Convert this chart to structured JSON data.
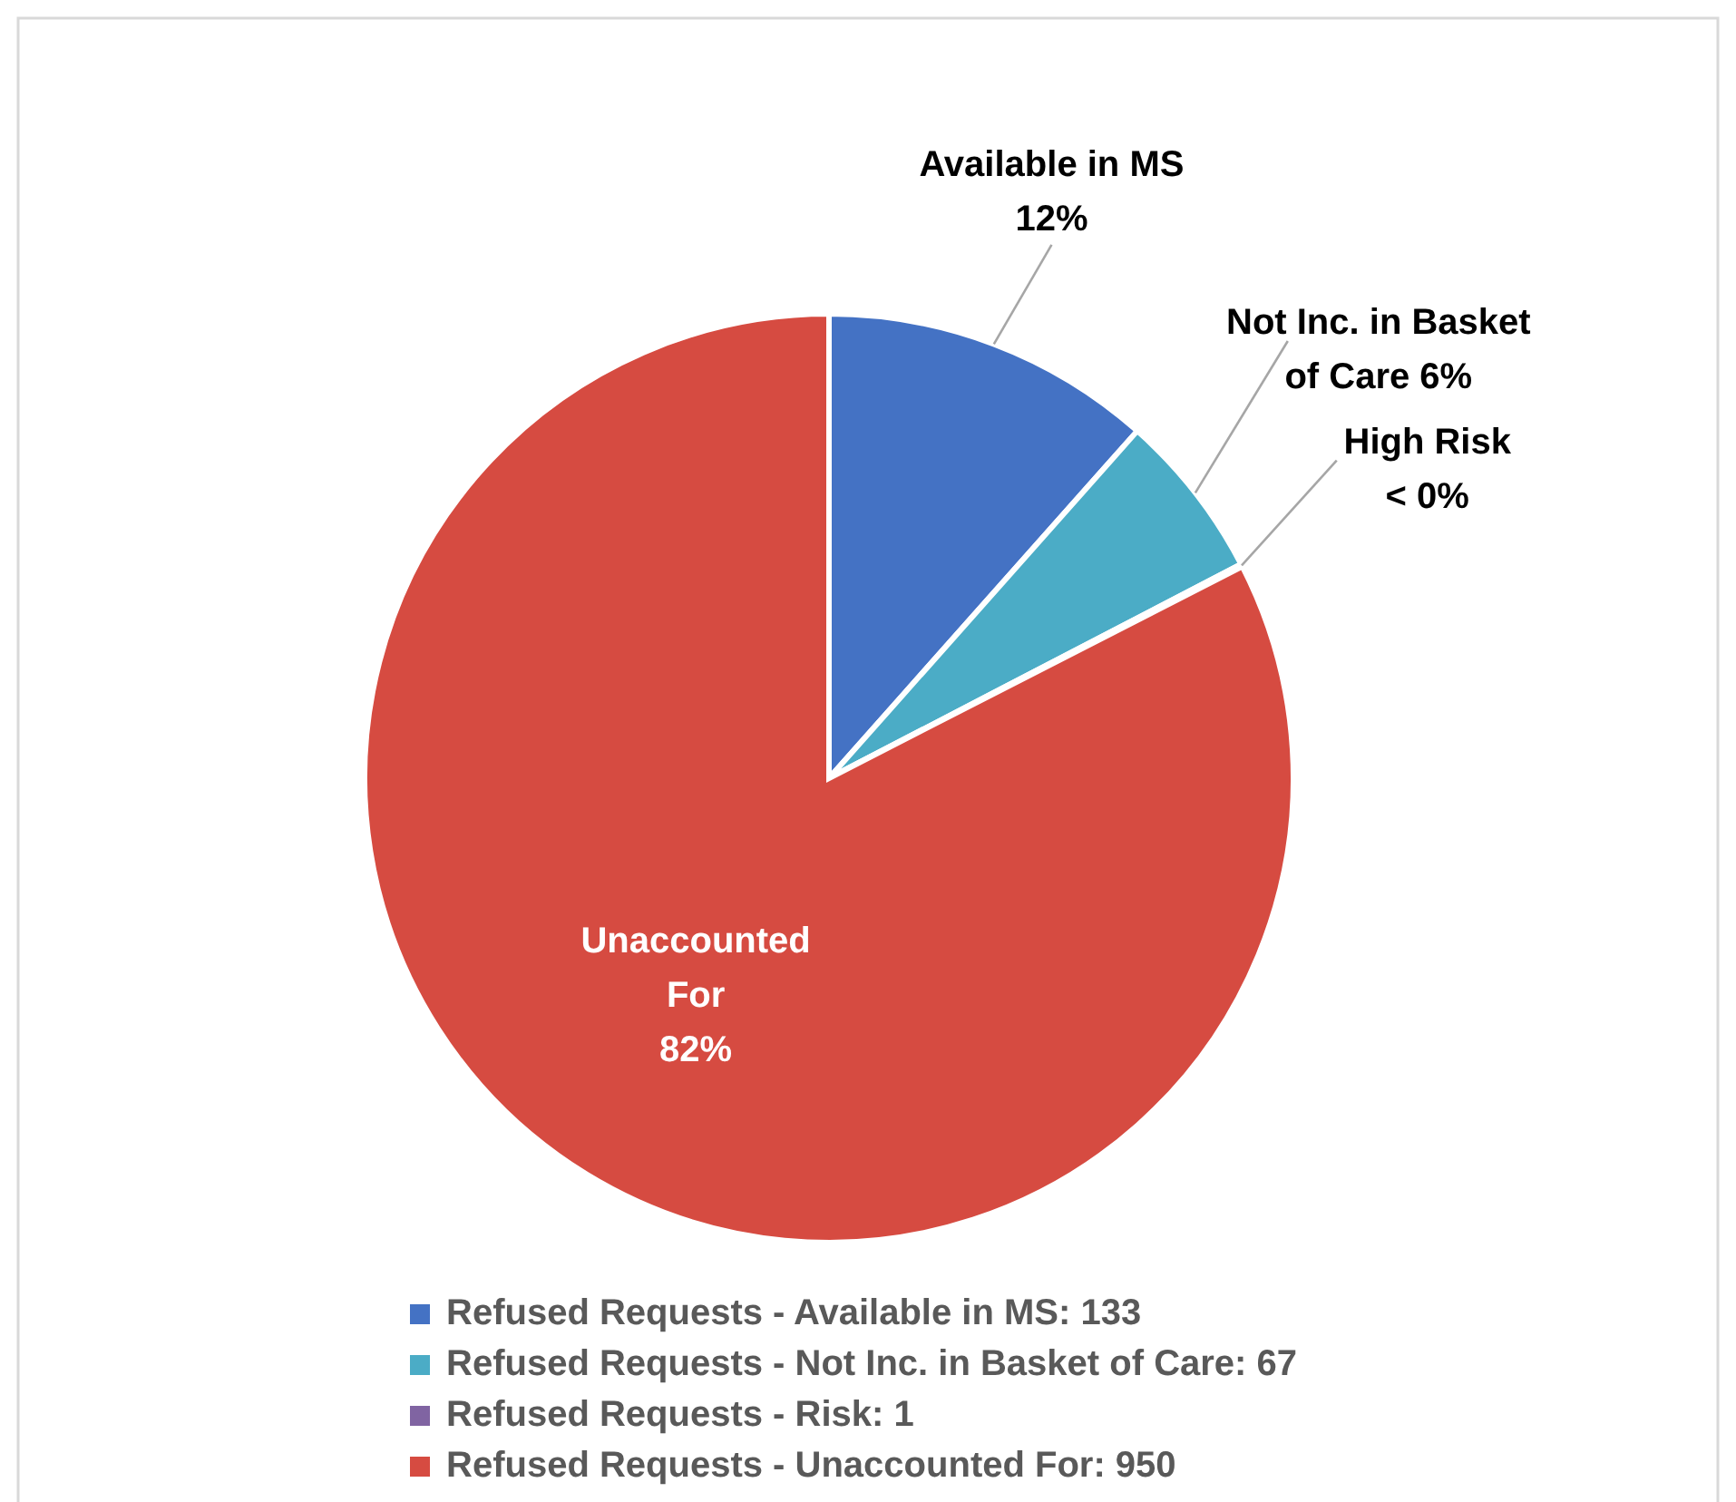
{
  "chart_data": {
    "type": "pie",
    "categories": [
      "Refused Requests - Available in MS: 133",
      "Refused Requests - Not Inc. in Basket of Care: 67",
      "Refused Requests - Risk: 1",
      "Refused Requests - Unaccounted For: 950"
    ],
    "values": [
      133,
      67,
      1,
      950
    ],
    "colors": [
      "#4472c4",
      "#4bacc6",
      "#8064a2",
      "#d64b41"
    ],
    "value_labels": [
      "Available in MS\n12%",
      "Not Inc. in Basket\nof Care 6%",
      "High Risk\n< 0%",
      "Unaccounted\nFor\n82%"
    ],
    "legend": "bottom"
  }
}
